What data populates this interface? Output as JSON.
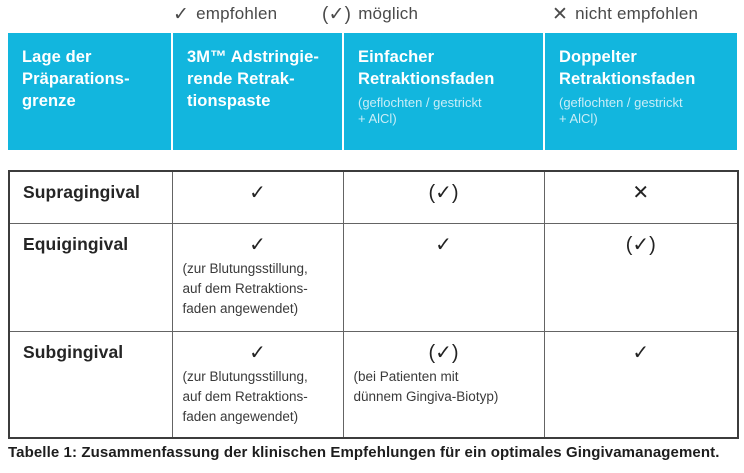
{
  "legend": {
    "items": [
      {
        "symbol": "✓",
        "label": "empfohlen"
      },
      {
        "symbol": "(✓)",
        "label": "möglich"
      },
      {
        "symbol": "✕",
        "label": "nicht empfohlen"
      }
    ]
  },
  "table": {
    "columns": [
      {
        "title": "Lage der\nPräparations-\ngrenze",
        "subtitle": ""
      },
      {
        "title": "3M™ Adstringie-\nrende Retrak-\ntionspaste",
        "subtitle": ""
      },
      {
        "title": "Einfacher\nRetraktionsfaden",
        "subtitle": "(geflochten / gestrickt\n+ AlCl)"
      },
      {
        "title": "Doppelter\nRetraktionsfaden",
        "subtitle": "(geflochten / gestrickt\n+ AlCl)"
      }
    ],
    "rows": [
      {
        "label": "Supragingival",
        "cells": [
          {
            "mark": "✓",
            "note": ""
          },
          {
            "mark": "(✓)",
            "note": ""
          },
          {
            "mark": "✕",
            "note": ""
          }
        ]
      },
      {
        "label": "Equigingival",
        "cells": [
          {
            "mark": "✓",
            "note": "(zur Blutungsstillung,\nauf dem Retraktions-\nfaden angewendet)"
          },
          {
            "mark": "✓",
            "note": ""
          },
          {
            "mark": "(✓)",
            "note": ""
          }
        ]
      },
      {
        "label": "Subgingival",
        "cells": [
          {
            "mark": "✓",
            "note": "(zur Blutungsstillung,\nauf dem Retraktions-\nfaden angewendet)"
          },
          {
            "mark": "(✓)",
            "note": "(bei Patienten mit\ndünnem Gingiva-Biotyp)"
          },
          {
            "mark": "✓",
            "note": ""
          }
        ]
      }
    ]
  },
  "caption": "Tabelle 1: Zusammenfassung der klinischen Empfehlungen für ein optimales Gingivamanagement.",
  "colors": {
    "header_bg": "#12b6de",
    "header_text": "#ffffff",
    "header_subtext": "#c9edf7",
    "body_text": "#2b2b2b",
    "border_outer": "#3c3c3c",
    "border_inner": "#646464"
  }
}
